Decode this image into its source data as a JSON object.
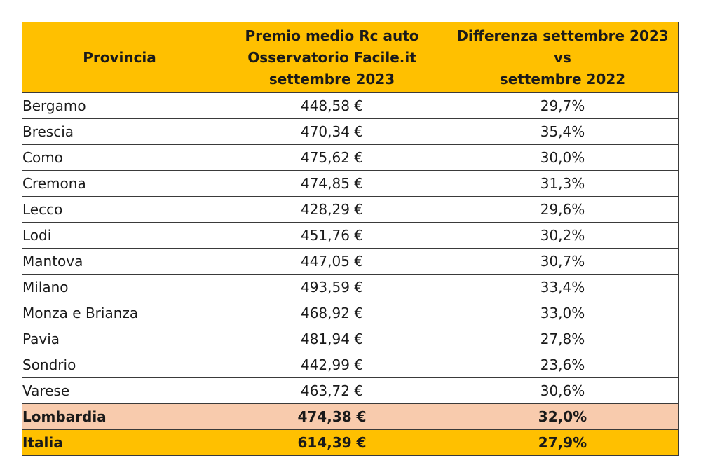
{
  "header": {
    "col1": [
      "Provincia"
    ],
    "col2": [
      "Premio medio Rc auto",
      "Osservatorio Facile.it",
      "settembre 2023"
    ],
    "col3": [
      "Differenza settembre 2023",
      "vs",
      "settembre 2022"
    ]
  },
  "rows": [
    {
      "provincia": "Bergamo",
      "premio": "448,58 €",
      "differenza": "29,7%"
    },
    {
      "provincia": "Brescia",
      "premio": "470,34 €",
      "differenza": "35,4%"
    },
    {
      "provincia": "Como",
      "premio": "475,62 €",
      "differenza": "30,0%"
    },
    {
      "provincia": "Cremona",
      "premio": "474,85 €",
      "differenza": "31,3%"
    },
    {
      "provincia": "Lecco",
      "premio": "428,29 €",
      "differenza": "29,6%"
    },
    {
      "provincia": "Lodi",
      "premio": "451,76 €",
      "differenza": "30,2%"
    },
    {
      "provincia": "Mantova",
      "premio": "447,05 €",
      "differenza": "30,7%"
    },
    {
      "provincia": "Milano",
      "premio": "493,59 €",
      "differenza": "33,4%"
    },
    {
      "provincia": "Monza e Brianza",
      "premio": "468,92 €",
      "differenza": "33,0%"
    },
    {
      "provincia": "Pavia",
      "premio": "481,94 €",
      "differenza": "27,8%"
    },
    {
      "provincia": "Sondrio",
      "premio": "442,99 €",
      "differenza": "23,6%"
    },
    {
      "provincia": "Varese",
      "premio": "463,72 €",
      "differenza": "30,6%"
    }
  ],
  "summary": [
    {
      "provincia": "Lombardia",
      "premio": "474,38 €",
      "differenza": "32,0%",
      "kind": "region"
    },
    {
      "provincia": "Italia",
      "premio": "614,39 €",
      "differenza": "27,9%",
      "kind": "nation"
    }
  ],
  "colors": {
    "header_bg": "#ffc000",
    "region_bg": "#f8cbad",
    "nation_bg": "#ffc000",
    "border": "#3a3a3a"
  }
}
